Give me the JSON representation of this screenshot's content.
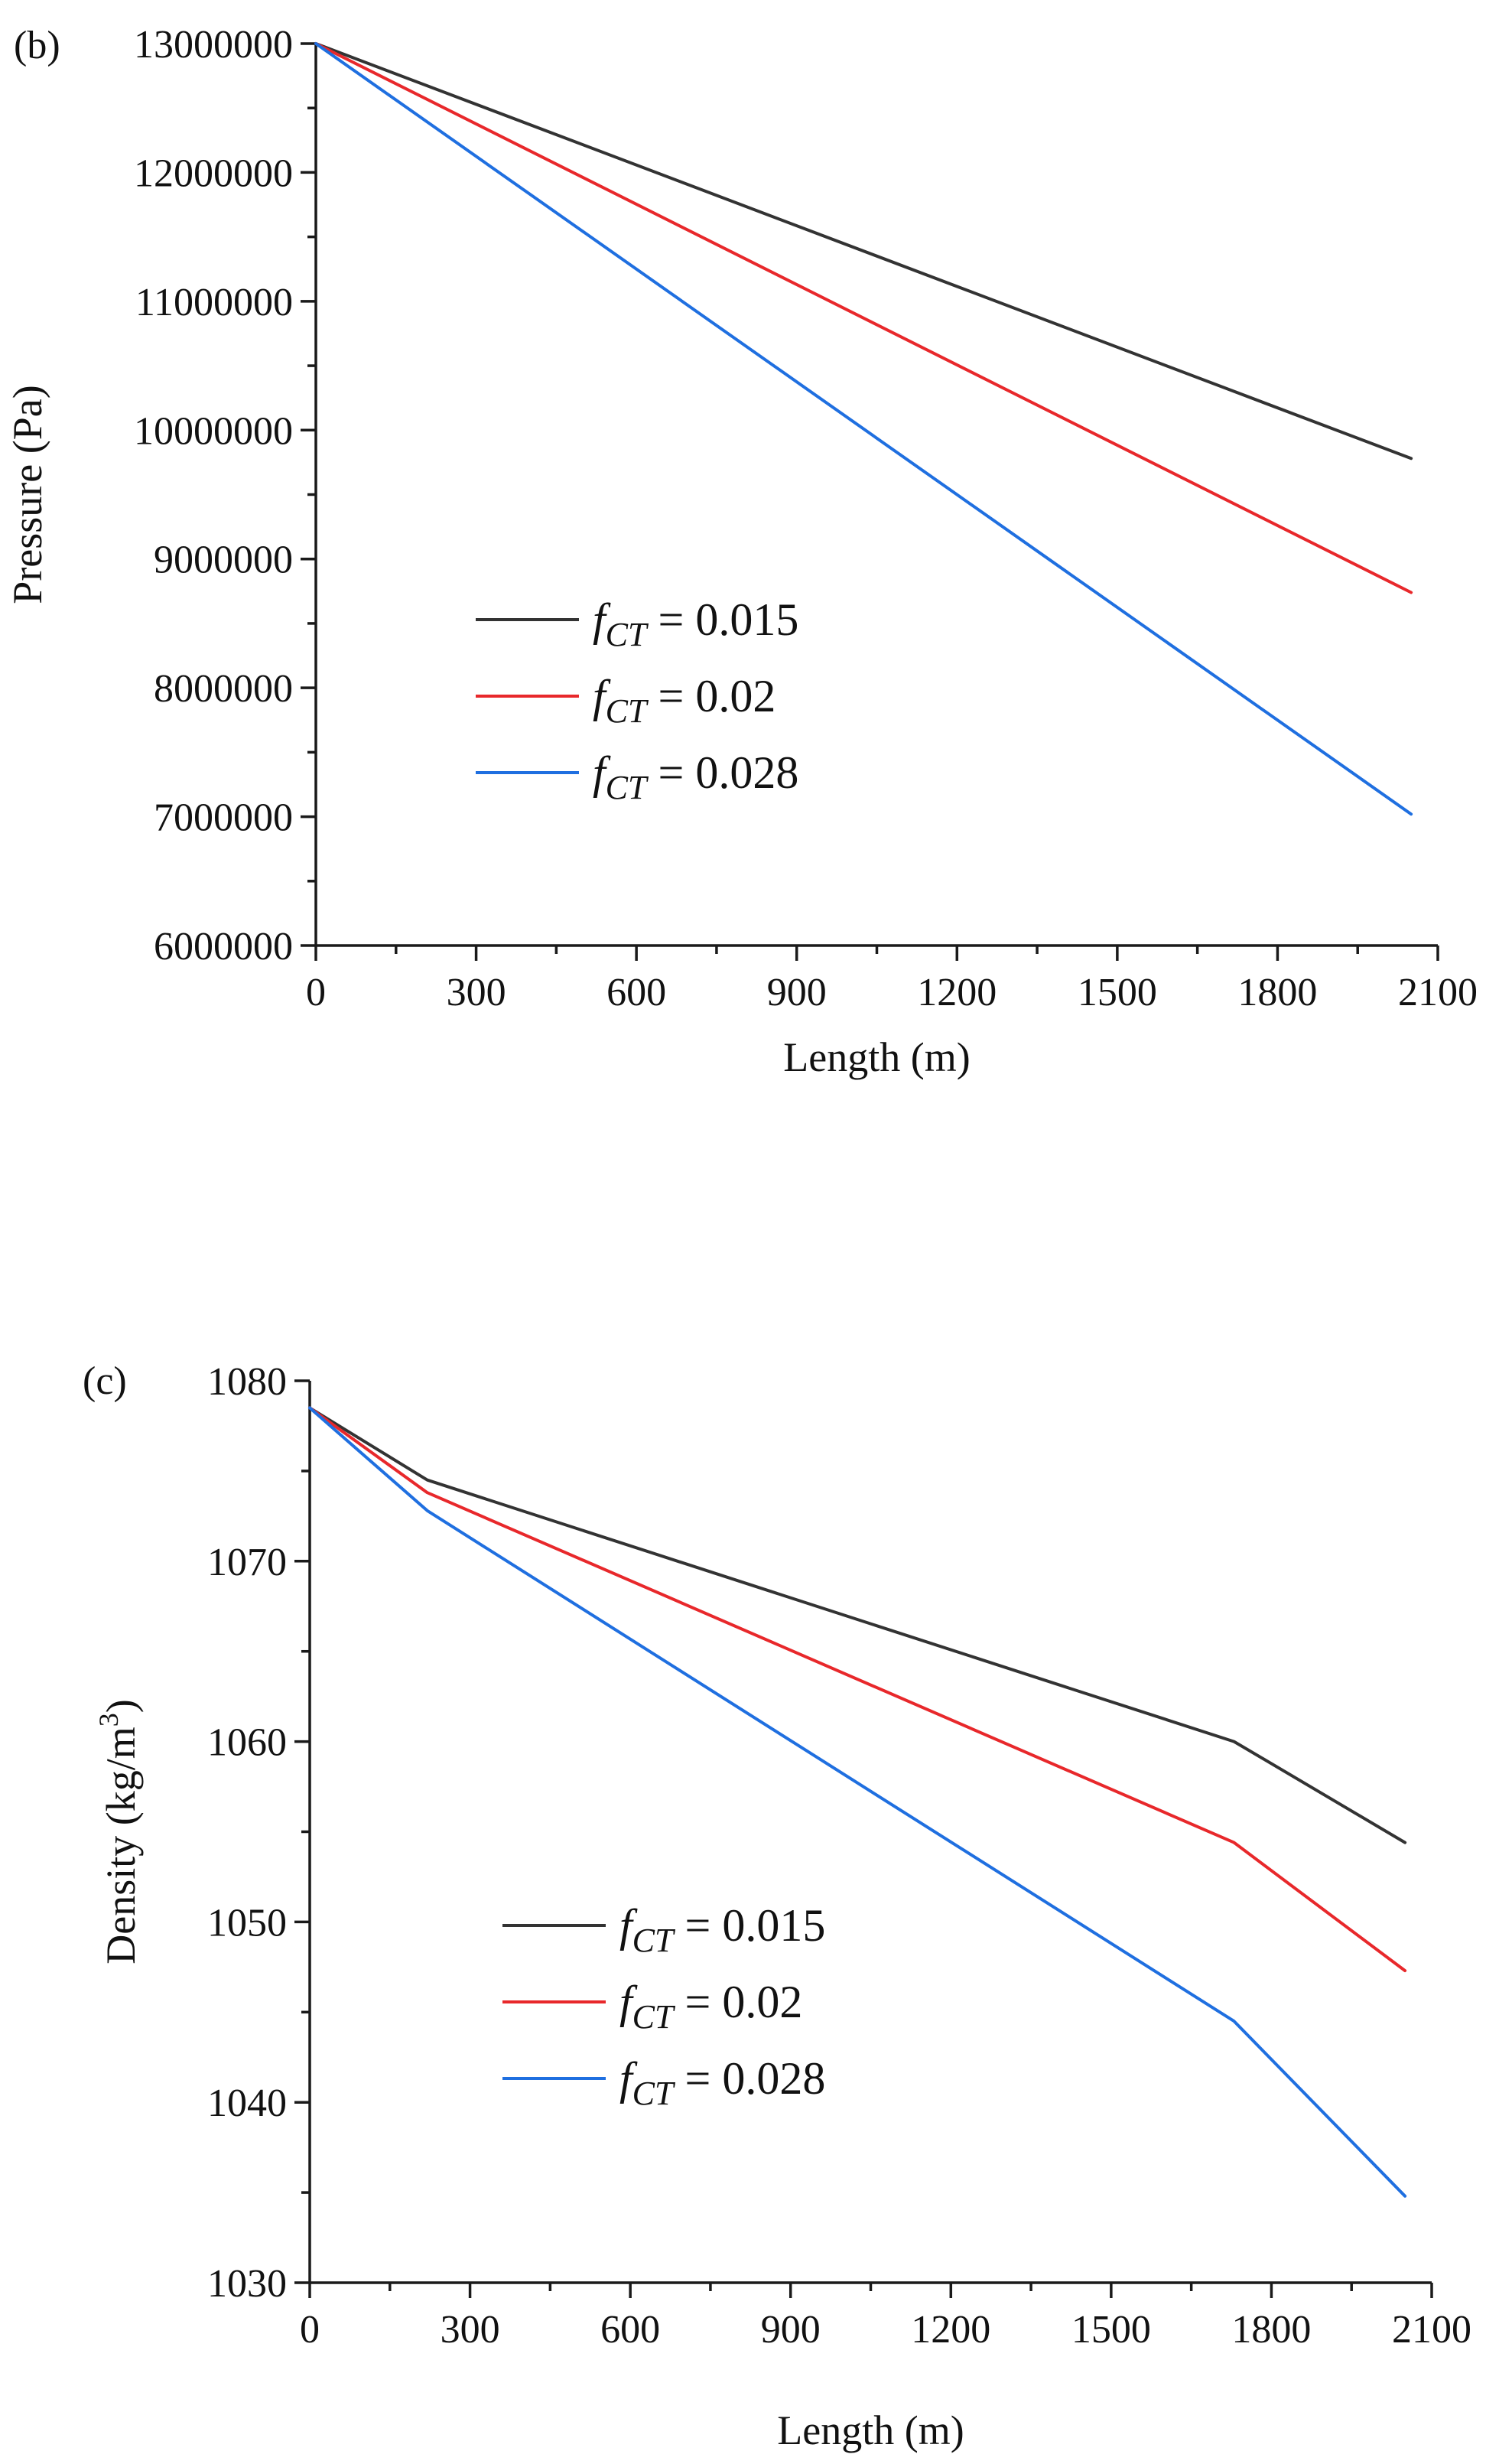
{
  "chart_data": [
    {
      "panel_label": "(b)",
      "type": "line",
      "xlabel": "Length (m)",
      "ylabel": "Pressure (Pa)",
      "xlim": [
        0,
        2100
      ],
      "ylim": [
        6000000,
        13000000
      ],
      "xticks": [
        0,
        300,
        600,
        900,
        1200,
        1500,
        1800,
        2100
      ],
      "yticks": [
        6000000,
        7000000,
        8000000,
        9000000,
        10000000,
        11000000,
        12000000,
        13000000
      ],
      "xtick_labels": [
        "0",
        "300",
        "600",
        "900",
        "1200",
        "1500",
        "1800",
        "2100"
      ],
      "ytick_labels": [
        "6000000",
        "7000000",
        "8000000",
        "9000000",
        "10000000",
        "11000000",
        "12000000",
        "13000000"
      ],
      "legend_position": "center-left",
      "series": [
        {
          "name_prefix": "f",
          "name_sub": "CT",
          "name_suffix": " = 0.015",
          "color": "#333333",
          "x": [
            0,
            2050
          ],
          "y": [
            13000000,
            9780000
          ]
        },
        {
          "name_prefix": "f",
          "name_sub": "CT",
          "name_suffix": " = 0.02",
          "color": "#e8282b",
          "x": [
            0,
            2050
          ],
          "y": [
            13000000,
            8740000
          ]
        },
        {
          "name_prefix": "f",
          "name_sub": "CT",
          "name_suffix": " = 0.028",
          "color": "#1f6fe0",
          "x": [
            0,
            2050
          ],
          "y": [
            13000000,
            7020000
          ]
        }
      ]
    },
    {
      "panel_label": "(c)",
      "type": "line",
      "xlabel": "Length (m)",
      "ylabel_main": "Density (kg/m",
      "ylabel_sup": "3",
      "ylabel_end": ")",
      "xlim": [
        0,
        2100
      ],
      "ylim": [
        1030,
        1080
      ],
      "xticks": [
        0,
        300,
        600,
        900,
        1200,
        1500,
        1800,
        2100
      ],
      "yticks": [
        1030,
        1040,
        1050,
        1060,
        1070,
        1080
      ],
      "xtick_labels": [
        "0",
        "300",
        "600",
        "900",
        "1200",
        "1500",
        "1800",
        "2100"
      ],
      "ytick_labels": [
        "1030",
        "1040",
        "1050",
        "1060",
        "1070",
        "1080"
      ],
      "legend_position": "lower-left",
      "series": [
        {
          "name_prefix": "f",
          "name_sub": "CT",
          "name_suffix": " = 0.015",
          "color": "#333333",
          "x": [
            0,
            220,
            1730,
            2050
          ],
          "y": [
            1078.5,
            1074.5,
            1060.0,
            1054.4
          ]
        },
        {
          "name_prefix": "f",
          "name_sub": "CT",
          "name_suffix": " = 0.02",
          "color": "#e8282b",
          "x": [
            0,
            220,
            1730,
            2050
          ],
          "y": [
            1078.5,
            1073.8,
            1054.4,
            1047.3
          ]
        },
        {
          "name_prefix": "f",
          "name_sub": "CT",
          "name_suffix": " = 0.028",
          "color": "#1f6fe0",
          "x": [
            0,
            220,
            1730,
            2050
          ],
          "y": [
            1078.5,
            1072.8,
            1044.5,
            1034.8
          ]
        }
      ]
    }
  ]
}
